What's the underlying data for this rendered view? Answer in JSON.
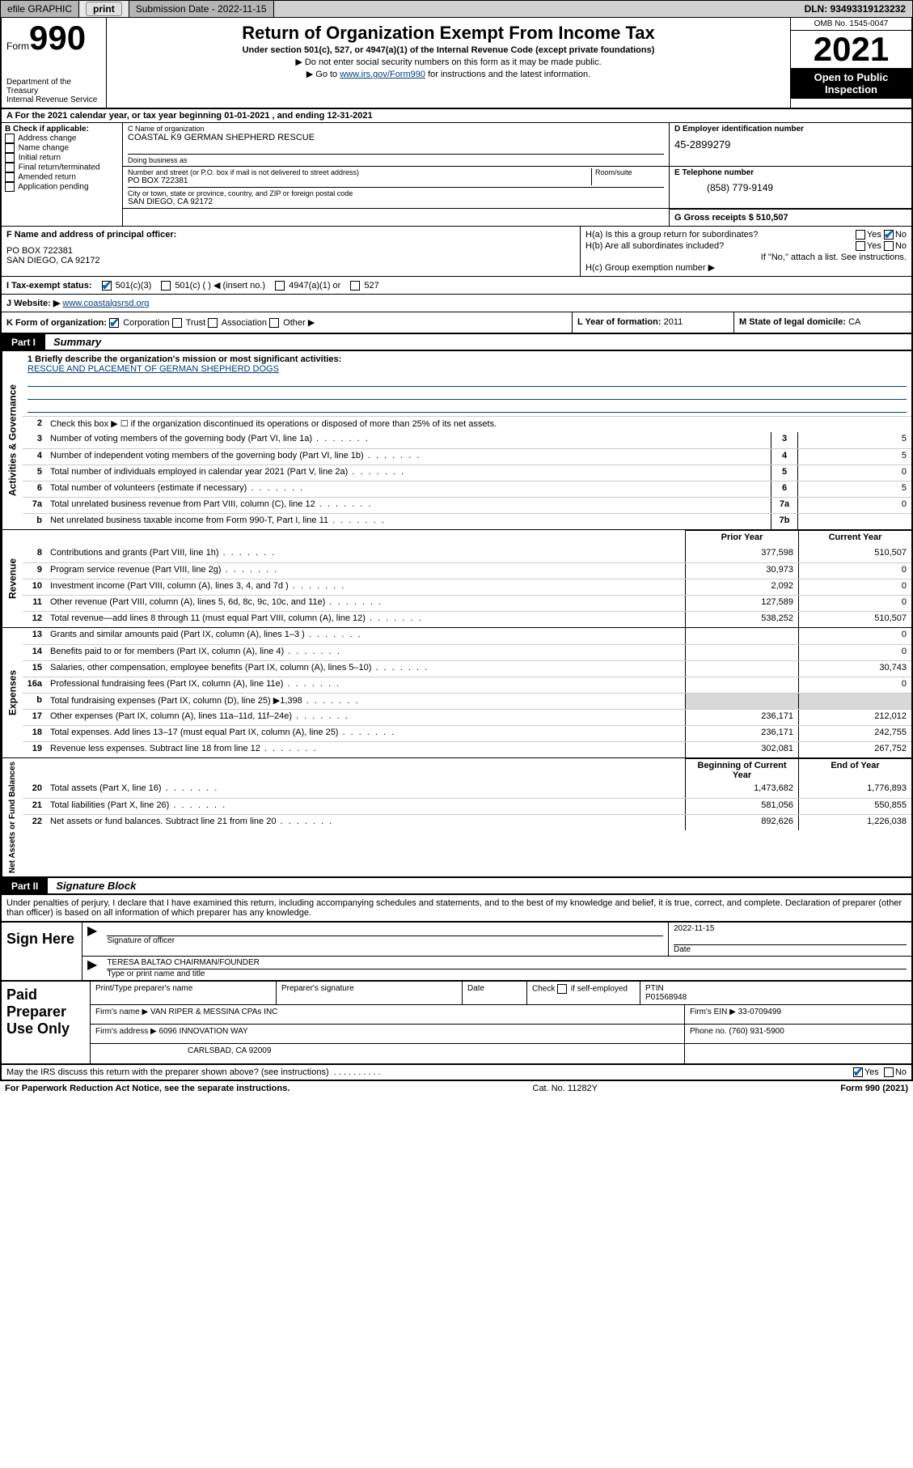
{
  "colors": {
    "link": "#004080",
    "check": "#0060c0",
    "topbar_bg": "#d0d0d0",
    "shade": "#d8d8d8"
  },
  "topbar": {
    "efile": "efile GRAPHIC",
    "print": "print",
    "sub_label": "Submission Date - 2022-11-15",
    "dln": "DLN: 93493319123232"
  },
  "header": {
    "form_word": "Form",
    "form_num": "990",
    "dept": "Department of the Treasury",
    "irs": "Internal Revenue Service",
    "title": "Return of Organization Exempt From Income Tax",
    "sub": "Under section 501(c), 527, or 4947(a)(1) of the Internal Revenue Code (except private foundations)",
    "note1": "▶ Do not enter social security numbers on this form as it may be made public.",
    "note2_pre": "▶ Go to ",
    "note2_link": "www.irs.gov/Form990",
    "note2_post": " for instructions and the latest information.",
    "omb": "OMB No. 1545-0047",
    "year": "2021",
    "inspect": "Open to Public Inspection"
  },
  "line_a": "A For the 2021 calendar year, or tax year beginning 01-01-2021    , and ending 12-31-2021",
  "box_b": {
    "hdr": "B Check if applicable:",
    "items": [
      "Address change",
      "Name change",
      "Initial return",
      "Final return/terminated",
      "Amended return",
      "Application pending"
    ]
  },
  "box_c": {
    "label": "C Name of organization",
    "name": "COASTAL K9 GERMAN SHEPHERD RESCUE",
    "dba_label": "Doing business as",
    "addr_label": "Number and street (or P.O. box if mail is not delivered to street address)",
    "room_label": "Room/suite",
    "addr": "PO BOX 722381",
    "city_label": "City or town, state or province, country, and ZIP or foreign postal code",
    "city": "SAN DIEGO, CA  92172"
  },
  "box_d": {
    "label": "D Employer identification number",
    "ein": "45-2899279"
  },
  "box_e": {
    "label": "E Telephone number",
    "phone": "(858) 779-9149"
  },
  "box_g": {
    "label": "G Gross receipts $",
    "val": "510,507"
  },
  "box_f": {
    "label": "F Name and address of principal officer:",
    "line1": "PO BOX 722381",
    "line2": "SAN DIEGO, CA  92172"
  },
  "box_h": {
    "a": "H(a)  Is this a group return for subordinates?",
    "a_yes": "Yes",
    "a_no": "No",
    "b": "H(b)  Are all subordinates included?",
    "b_yes": "Yes",
    "b_no": "No",
    "b_note": "If \"No,\" attach a list. See instructions.",
    "c": "H(c)  Group exemption number ▶"
  },
  "row_i": {
    "label": "I   Tax-exempt status:",
    "c3": "501(c)(3)",
    "c": "501(c) (  ) ◀ (insert no.)",
    "a1": "4947(a)(1) or",
    "s527": "527"
  },
  "row_j": {
    "label": "J   Website: ▶",
    "url": "www.coastalgsrsd.org"
  },
  "row_k": {
    "label": "K Form of organization:",
    "corp": "Corporation",
    "trust": "Trust",
    "assoc": "Association",
    "other": "Other ▶"
  },
  "row_l": {
    "label": "L Year of formation:",
    "val": "2011"
  },
  "row_m": {
    "label": "M State of legal domicile:",
    "val": "CA"
  },
  "part1": {
    "tag": "Part I",
    "title": "Summary"
  },
  "summary": {
    "sect_ag": {
      "side": "Activities & Governance",
      "l1_label": "1   Briefly describe the organization's mission or most significant activities:",
      "l1_mission": "RESCUE AND PLACEMENT OF GERMAN SHEPHERD DOGS",
      "l2": "Check this box ▶ ☐  if the organization discontinued its operations or disposed of more than 25% of its net assets.",
      "rows": [
        {
          "n": "3",
          "d": "Number of voting members of the governing body (Part VI, line 1a)",
          "box": "3",
          "v": "5"
        },
        {
          "n": "4",
          "d": "Number of independent voting members of the governing body (Part VI, line 1b)",
          "box": "4",
          "v": "5"
        },
        {
          "n": "5",
          "d": "Total number of individuals employed in calendar year 2021 (Part V, line 2a)",
          "box": "5",
          "v": "0"
        },
        {
          "n": "6",
          "d": "Total number of volunteers (estimate if necessary)",
          "box": "6",
          "v": "5"
        },
        {
          "n": "7a",
          "d": "Total unrelated business revenue from Part VIII, column (C), line 12",
          "box": "7a",
          "v": "0"
        },
        {
          "n": "b",
          "d": "Net unrelated business taxable income from Form 990-T, Part I, line 11",
          "box": "7b",
          "v": ""
        }
      ]
    },
    "col_hdr_prior": "Prior Year",
    "col_hdr_curr": "Current Year",
    "sect_rev": {
      "side": "Revenue",
      "rows": [
        {
          "n": "8",
          "d": "Contributions and grants (Part VIII, line 1h)",
          "p": "377,598",
          "c": "510,507"
        },
        {
          "n": "9",
          "d": "Program service revenue (Part VIII, line 2g)",
          "p": "30,973",
          "c": "0"
        },
        {
          "n": "10",
          "d": "Investment income (Part VIII, column (A), lines 3, 4, and 7d )",
          "p": "2,092",
          "c": "0"
        },
        {
          "n": "11",
          "d": "Other revenue (Part VIII, column (A), lines 5, 6d, 8c, 9c, 10c, and 11e)",
          "p": "127,589",
          "c": "0"
        },
        {
          "n": "12",
          "d": "Total revenue—add lines 8 through 11 (must equal Part VIII, column (A), line 12)",
          "p": "538,252",
          "c": "510,507"
        }
      ]
    },
    "sect_exp": {
      "side": "Expenses",
      "rows": [
        {
          "n": "13",
          "d": "Grants and similar amounts paid (Part IX, column (A), lines 1–3 )",
          "p": "",
          "c": "0"
        },
        {
          "n": "14",
          "d": "Benefits paid to or for members (Part IX, column (A), line 4)",
          "p": "",
          "c": "0"
        },
        {
          "n": "15",
          "d": "Salaries, other compensation, employee benefits (Part IX, column (A), lines 5–10)",
          "p": "",
          "c": "30,743"
        },
        {
          "n": "16a",
          "d": "Professional fundraising fees (Part IX, column (A), line 11e)",
          "p": "",
          "c": "0"
        },
        {
          "n": "b",
          "d": "Total fundraising expenses (Part IX, column (D), line 25) ▶1,398",
          "p": "SHADE",
          "c": "SHADE"
        },
        {
          "n": "17",
          "d": "Other expenses (Part IX, column (A), lines 11a–11d, 11f–24e)",
          "p": "236,171",
          "c": "212,012"
        },
        {
          "n": "18",
          "d": "Total expenses. Add lines 13–17 (must equal Part IX, column (A), line 25)",
          "p": "236,171",
          "c": "242,755"
        },
        {
          "n": "19",
          "d": "Revenue less expenses. Subtract line 18 from line 12",
          "p": "302,081",
          "c": "267,752"
        }
      ]
    },
    "col_hdr_beg": "Beginning of Current Year",
    "col_hdr_end": "End of Year",
    "sect_na": {
      "side": "Net Assets or Fund Balances",
      "rows": [
        {
          "n": "20",
          "d": "Total assets (Part X, line 16)",
          "p": "1,473,682",
          "c": "1,776,893"
        },
        {
          "n": "21",
          "d": "Total liabilities (Part X, line 26)",
          "p": "581,056",
          "c": "550,855"
        },
        {
          "n": "22",
          "d": "Net assets or fund balances. Subtract line 21 from line 20",
          "p": "892,626",
          "c": "1,226,038"
        }
      ]
    }
  },
  "part2": {
    "tag": "Part II",
    "title": "Signature Block"
  },
  "penalties": "Under penalties of perjury, I declare that I have examined this return, including accompanying schedules and statements, and to the best of my knowledge and belief, it is true, correct, and complete. Declaration of preparer (other than officer) is based on all information of which preparer has any knowledge.",
  "sign": {
    "here": "Sign Here",
    "sig_officer": "Signature of officer",
    "date_label": "Date",
    "date": "2022-11-15",
    "name": "TERESA BALTAO  CHAIRMAN/FOUNDER",
    "name_label": "Type or print name and title"
  },
  "prep": {
    "here": "Paid Preparer Use Only",
    "h1": "Print/Type preparer's name",
    "h2": "Preparer's signature",
    "h3": "Date",
    "h4_a": "Check",
    "h4_b": "if self-employed",
    "h5": "PTIN",
    "ptin": "P01568948",
    "firm_name_l": "Firm's name    ▶",
    "firm_name": "VAN RIPER & MESSINA CPAs INC",
    "firm_ein_l": "Firm's EIN ▶",
    "firm_ein": "33-0709499",
    "firm_addr_l": "Firm's address ▶",
    "firm_addr1": "6096 INNOVATION WAY",
    "firm_addr2": "CARLSBAD, CA  92009",
    "phone_l": "Phone no.",
    "phone": "(760) 931-5900"
  },
  "footer": {
    "discuss": "May the IRS discuss this return with the preparer shown above? (see instructions)",
    "yes": "Yes",
    "no": "No",
    "paperwork": "For Paperwork Reduction Act Notice, see the separate instructions.",
    "cat": "Cat. No. 11282Y",
    "form": "Form 990 (2021)"
  }
}
